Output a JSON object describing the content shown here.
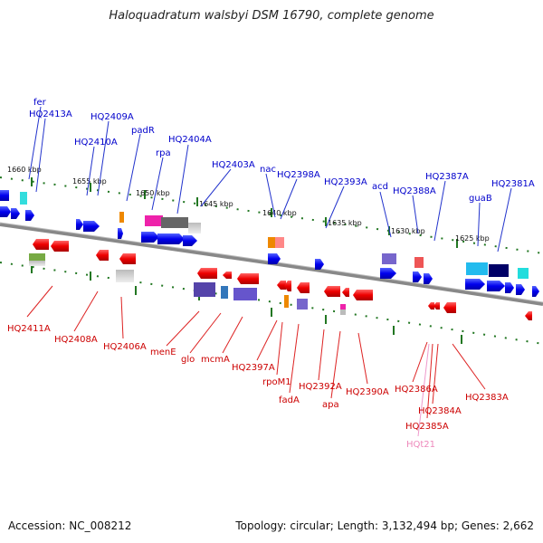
{
  "title": "Haloquadratum walsbyi DSM 16790, complete genome",
  "footer": {
    "accession": "Accession: NC_008212",
    "summary": "Topology: circular; Length: 3,132,494 bp; Genes: 2,662"
  },
  "kbp_labels": [
    "1660 kbp",
    "1655 kbp",
    "1650 kbp",
    "1645 kbp",
    "1640 kbp",
    "1635 kbp",
    "1630 kbp",
    "1625 kbp"
  ],
  "forward_labels": [
    "fer",
    "HQ2413A",
    "HQ2410A",
    "HQ2409A",
    "padR",
    "rpa",
    "HQ2404A",
    "HQ2403A",
    "nac",
    "HQ2398A",
    "HQ2393A",
    "acd",
    "HQ2388A",
    "HQ2387A",
    "guaB",
    "HQ2381A"
  ],
  "reverse_labels": [
    "HQ2411A",
    "HQ2408A",
    "HQ2406A",
    "menE",
    "glo",
    "mcmA",
    "HQ2397A",
    "rpoM1",
    "fadA",
    "HQ2392A",
    "apa",
    "HQ2390A",
    "HQ2386A",
    "HQ2384A",
    "HQ2385A",
    "HQ2383A"
  ],
  "rna_labels": [
    "HQt21"
  ],
  "colors": {
    "forward_gene": "#0000ee",
    "reverse_gene": "#ee0000",
    "backbone": "#888888",
    "tick": "#227722",
    "forward_label": "#0000cc",
    "reverse_label": "#cc0000",
    "rna_label": "#ee88bb"
  }
}
